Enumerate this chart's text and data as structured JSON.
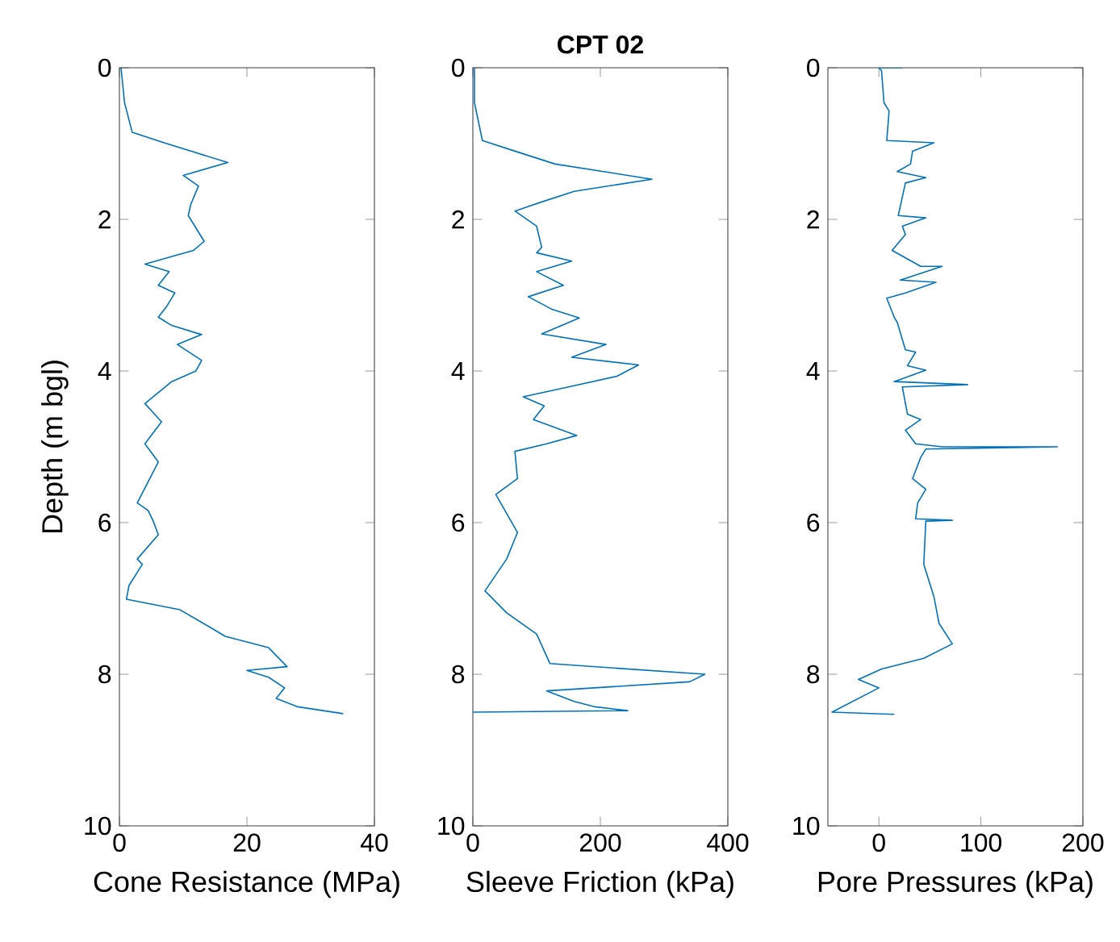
{
  "chart_data": [
    {
      "type": "line",
      "xlabel": "Cone Resistance (MPa)",
      "ylabel": "Depth (m bgl)",
      "xlim": [
        0,
        40
      ],
      "xticks": [
        0,
        20,
        40
      ],
      "ylim": [
        10,
        0
      ],
      "yticks": [
        0,
        2,
        4,
        6,
        8,
        10
      ],
      "series": [
        {
          "color": "#0072bd",
          "x": [
            0.25,
            0.8,
            2,
            7,
            17,
            10,
            12.4,
            11.2,
            10.8,
            13.3,
            11.6,
            4,
            7.8,
            6.1,
            8.7,
            7.4,
            6.1,
            8.2,
            12.9,
            9.1,
            12.9,
            12,
            8.2,
            4,
            6.6,
            4,
            6.1,
            2.8,
            4.5,
            5.3,
            6.1,
            2.8,
            3.6,
            1.5,
            1.1,
            9.5,
            14,
            16.6,
            23.4,
            26.3,
            20,
            23.4,
            25.9,
            24.6,
            28,
            35.1
          ],
          "values": [
            0,
            0.46,
            0.85,
            0.99,
            1.25,
            1.42,
            1.56,
            1.8,
            1.95,
            2.29,
            2.41,
            2.59,
            2.69,
            2.87,
            2.97,
            3.15,
            3.29,
            3.4,
            3.52,
            3.65,
            3.86,
            4.0,
            4.14,
            4.43,
            4.67,
            4.96,
            5.2,
            5.74,
            5.84,
            5.98,
            6.16,
            6.48,
            6.55,
            6.83,
            7.01,
            7.15,
            7.37,
            7.5,
            7.65,
            7.9,
            7.95,
            8.04,
            8.18,
            8.32,
            8.43,
            8.52
          ]
        }
      ]
    },
    {
      "type": "line",
      "title": "CPT 02",
      "xlabel": "Sleeve Friction (kPa)",
      "xlim": [
        0,
        400
      ],
      "xticks": [
        0,
        200,
        400
      ],
      "ylim": [
        10,
        0
      ],
      "yticks": [
        0,
        2,
        4,
        6,
        8,
        10
      ],
      "series": [
        {
          "color": "#0072bd",
          "x": [
            2.5,
            2.5,
            15,
            66,
            129,
            243,
            281,
            159,
            108,
            66,
            100,
            108,
            100,
            155,
            100,
            142,
            87,
            125,
            167,
            108,
            209,
            155,
            260,
            226,
            150,
            79,
            112,
            95,
            163,
            116,
            66,
            70,
            36,
            70,
            53,
            19,
            53,
            100,
            121,
            364,
            340,
            116,
            159,
            192,
            243,
            0
          ],
          "values": [
            0,
            0.46,
            0.96,
            1.1,
            1.27,
            1.42,
            1.47,
            1.63,
            1.77,
            1.89,
            2.09,
            2.37,
            2.44,
            2.55,
            2.69,
            2.87,
            3.02,
            3.19,
            3.3,
            3.51,
            3.65,
            3.82,
            3.92,
            4.07,
            4.21,
            4.34,
            4.46,
            4.64,
            4.85,
            4.96,
            5.06,
            5.42,
            5.63,
            6.13,
            6.48,
            6.9,
            7.19,
            7.47,
            7.86,
            8.0,
            8.1,
            8.22,
            8.36,
            8.43,
            8.48,
            8.5
          ]
        }
      ]
    },
    {
      "type": "line",
      "xlabel": "Pore Pressures (kPa)",
      "xlim": [
        -50,
        200
      ],
      "xticks": [
        0,
        100,
        200
      ],
      "ylim": [
        10,
        0
      ],
      "yticks": [
        0,
        2,
        4,
        6,
        8,
        10
      ],
      "series": [
        {
          "color": "#0072bd",
          "x": [
            23,
            0,
            2.6,
            5,
            10,
            7.7,
            54,
            33,
            31,
            18,
            46,
            26,
            19,
            46,
            23,
            26,
            13,
            41,
            62,
            21,
            56,
            26,
            7.7,
            15,
            18,
            26,
            36,
            28,
            46,
            15,
            87,
            23,
            28,
            41,
            26,
            36,
            62,
            175,
            46,
            41,
            33,
            46,
            38,
            36,
            72,
            46,
            44,
            54,
            59,
            72,
            44,
            2.6,
            -20,
            0,
            -46,
            15
          ],
          "values": [
            0,
            0,
            0.04,
            0.46,
            0.57,
            0.96,
            0.99,
            1.1,
            1.27,
            1.37,
            1.45,
            1.52,
            1.95,
            1.98,
            2.09,
            2.2,
            2.41,
            2.62,
            2.62,
            2.8,
            2.83,
            2.97,
            3.04,
            3.29,
            3.36,
            3.72,
            3.75,
            3.93,
            3.99,
            4.14,
            4.18,
            4.21,
            4.57,
            4.64,
            4.78,
            4.96,
            5.0,
            5.0,
            5.03,
            5.14,
            5.42,
            5.56,
            5.74,
            5.95,
            5.97,
            5.98,
            6.55,
            6.98,
            7.33,
            7.6,
            7.79,
            7.93,
            8.07,
            8.18,
            8.5,
            8.53
          ]
        }
      ]
    }
  ]
}
